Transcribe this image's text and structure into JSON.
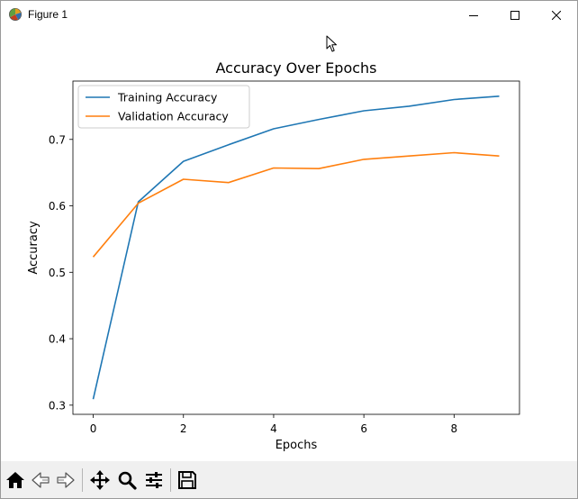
{
  "window": {
    "title": "Figure 1",
    "app_icon": "matplotlib-figure-icon",
    "controls": [
      "minimize-icon",
      "maximize-icon",
      "close-icon"
    ]
  },
  "toolbar": {
    "buttons": [
      {
        "name": "home-icon",
        "tooltip": "Reset original view"
      },
      {
        "name": "back-arrow-icon",
        "tooltip": "Back to previous view"
      },
      {
        "name": "forward-arrow-icon",
        "tooltip": "Forward to next view"
      },
      {
        "name": "pan-icon",
        "tooltip": "Pan axes"
      },
      {
        "name": "zoom-icon",
        "tooltip": "Zoom to rectangle"
      },
      {
        "name": "configure-subplots-icon",
        "tooltip": "Configure subplots"
      },
      {
        "name": "save-icon",
        "tooltip": "Save the figure"
      }
    ]
  },
  "colors": {
    "training": "#1f77b4",
    "validation": "#ff7f0e",
    "toolbar_bg": "#f0f0f0"
  },
  "chart_data": {
    "type": "line",
    "title": "Accuracy Over Epochs",
    "xlabel": "Epochs",
    "ylabel": "Accuracy",
    "x": [
      0,
      1,
      2,
      3,
      4,
      5,
      6,
      7,
      8,
      9
    ],
    "series": [
      {
        "name": "Training Accuracy",
        "values": [
          0.309,
          0.606,
          0.667,
          0.692,
          0.716,
          0.73,
          0.743,
          0.75,
          0.76,
          0.765
        ]
      },
      {
        "name": "Validation Accuracy",
        "values": [
          0.523,
          0.604,
          0.64,
          0.635,
          0.657,
          0.656,
          0.67,
          0.675,
          0.68,
          0.675
        ]
      }
    ],
    "xticks": [
      "0",
      "2",
      "4",
      "6",
      "8"
    ],
    "yticks": [
      "0.3",
      "0.4",
      "0.5",
      "0.6",
      "0.7"
    ],
    "xlim": [
      -0.45,
      9.45
    ],
    "ylim": [
      0.2862,
      0.7878
    ],
    "grid": false,
    "legend_position": "upper left"
  }
}
